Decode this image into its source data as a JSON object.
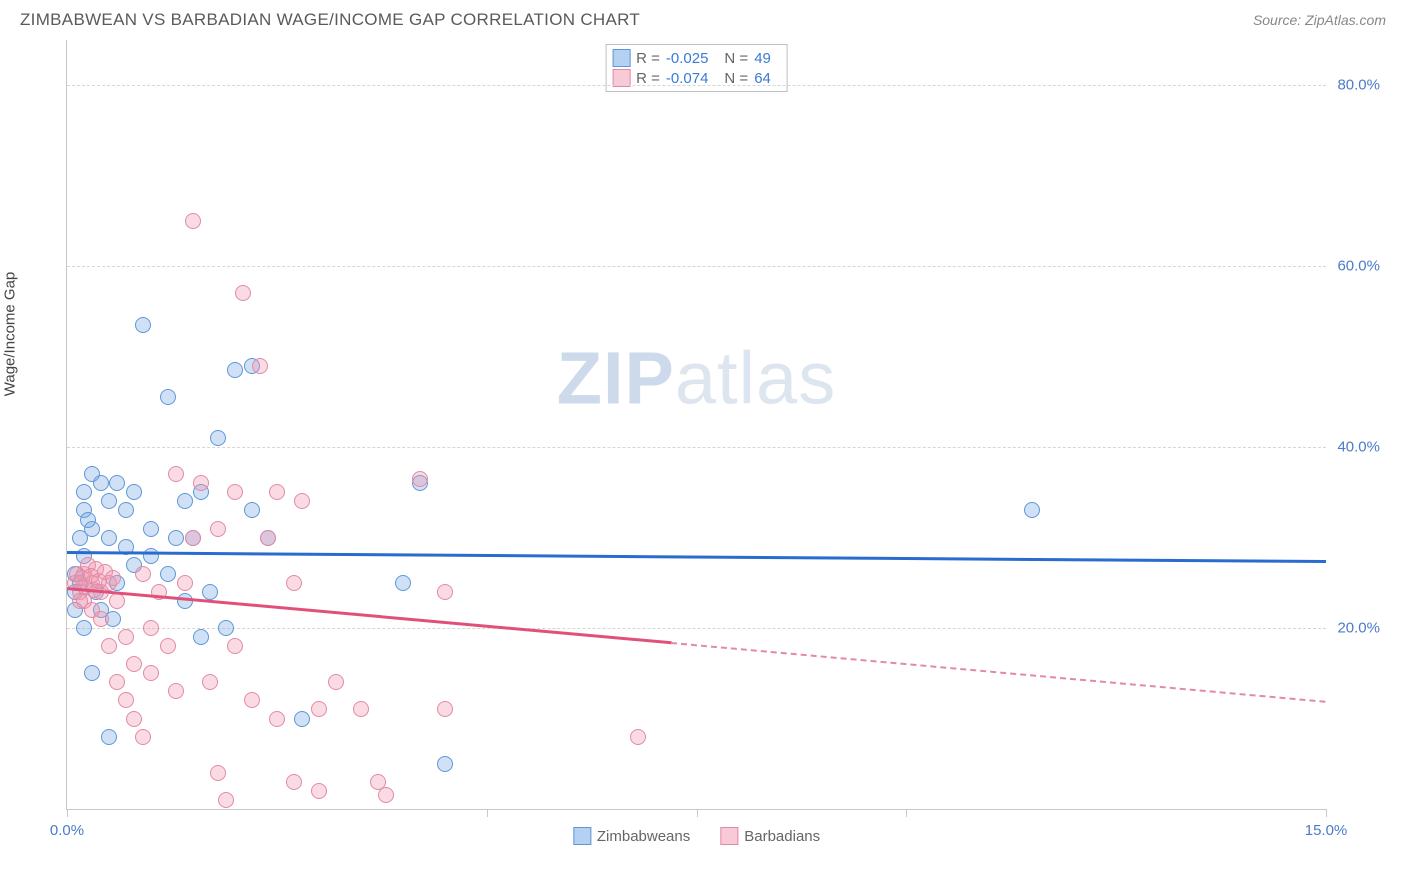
{
  "title": "ZIMBABWEAN VS BARBADIAN WAGE/INCOME GAP CORRELATION CHART",
  "source": "Source: ZipAtlas.com",
  "y_axis_label": "Wage/Income Gap",
  "watermark_zip": "ZIP",
  "watermark_atlas": "atlas",
  "chart": {
    "type": "scatter",
    "xlim": [
      0,
      15
    ],
    "ylim": [
      0,
      85
    ],
    "x_ticks": [
      0,
      5,
      7.5,
      10,
      15
    ],
    "x_tick_labels": {
      "0": "0.0%",
      "15": "15.0%"
    },
    "y_gridlines": [
      20,
      40,
      60,
      80
    ],
    "y_tick_labels": {
      "20": "20.0%",
      "40": "40.0%",
      "60": "60.0%",
      "80": "80.0%"
    },
    "background_color": "#ffffff",
    "grid_color": "#d6d6d6",
    "axis_color": "#c8c8c8",
    "tick_label_color": "#4a7bc8",
    "series": [
      {
        "name": "Zimbabweans",
        "stat_R": "-0.025",
        "stat_N": "49",
        "marker_fill": "rgba(120,170,230,0.35)",
        "marker_stroke": "#5e97d8",
        "swatch_fill": "rgba(150,190,235,0.7)",
        "swatch_stroke": "#5e97d8",
        "trend_color": "#2a6bd0",
        "trend_start": [
          0,
          28.5
        ],
        "trend_solid_end": [
          15,
          27.5
        ],
        "trend_dash_end": null,
        "points": [
          [
            0.1,
            22
          ],
          [
            0.1,
            24
          ],
          [
            0.1,
            26
          ],
          [
            0.2,
            33
          ],
          [
            0.2,
            35
          ],
          [
            0.3,
            37
          ],
          [
            0.3,
            31
          ],
          [
            0.2,
            28
          ],
          [
            0.4,
            36
          ],
          [
            0.5,
            34
          ],
          [
            0.5,
            30
          ],
          [
            0.6,
            36
          ],
          [
            0.7,
            29
          ],
          [
            0.7,
            33
          ],
          [
            0.8,
            35
          ],
          [
            0.9,
            53.5
          ],
          [
            1.0,
            31
          ],
          [
            1.2,
            45.5
          ],
          [
            1.3,
            30
          ],
          [
            1.4,
            34
          ],
          [
            1.5,
            30
          ],
          [
            1.6,
            35
          ],
          [
            1.7,
            24
          ],
          [
            1.8,
            41
          ],
          [
            1.9,
            20
          ],
          [
            2.0,
            48.5
          ],
          [
            2.2,
            49
          ],
          [
            2.2,
            33
          ],
          [
            2.4,
            30
          ],
          [
            0.5,
            8
          ],
          [
            0.3,
            15
          ],
          [
            2.8,
            10
          ],
          [
            4.0,
            25
          ],
          [
            4.5,
            5
          ],
          [
            4.2,
            36
          ],
          [
            11.5,
            33
          ],
          [
            0.2,
            20
          ],
          [
            0.4,
            22
          ],
          [
            0.6,
            25
          ],
          [
            0.8,
            27
          ],
          [
            1.0,
            28
          ],
          [
            1.2,
            26
          ],
          [
            1.4,
            23
          ],
          [
            1.6,
            19
          ],
          [
            0.15,
            30
          ],
          [
            0.25,
            32
          ],
          [
            0.35,
            24
          ],
          [
            0.55,
            21
          ],
          [
            0.15,
            25
          ]
        ]
      },
      {
        "name": "Barbadians",
        "stat_R": "-0.074",
        "stat_N": "64",
        "marker_fill": "rgba(240,150,175,0.35)",
        "marker_stroke": "#e28aa5",
        "swatch_fill": "rgba(245,180,200,0.7)",
        "swatch_stroke": "#e28aa5",
        "trend_color": "#e0517a",
        "trend_start": [
          0,
          24.5
        ],
        "trend_solid_end": [
          7.2,
          18.5
        ],
        "trend_dash_end": [
          15,
          12
        ],
        "points": [
          [
            0.1,
            25
          ],
          [
            0.15,
            24
          ],
          [
            0.2,
            26
          ],
          [
            0.2,
            23
          ],
          [
            0.25,
            27
          ],
          [
            0.3,
            25
          ],
          [
            0.3,
            22
          ],
          [
            0.35,
            26.5
          ],
          [
            0.4,
            24
          ],
          [
            0.4,
            21
          ],
          [
            0.5,
            25
          ],
          [
            0.5,
            18
          ],
          [
            0.6,
            23
          ],
          [
            0.6,
            14
          ],
          [
            0.7,
            19
          ],
          [
            0.7,
            12
          ],
          [
            0.8,
            16
          ],
          [
            0.8,
            10
          ],
          [
            0.9,
            26
          ],
          [
            0.9,
            8
          ],
          [
            1.0,
            20
          ],
          [
            1.0,
            15
          ],
          [
            1.1,
            24
          ],
          [
            1.2,
            18
          ],
          [
            1.3,
            13
          ],
          [
            1.3,
            37
          ],
          [
            1.4,
            25
          ],
          [
            1.5,
            65
          ],
          [
            1.5,
            30
          ],
          [
            1.6,
            36
          ],
          [
            1.7,
            14
          ],
          [
            1.8,
            31
          ],
          [
            1.8,
            4
          ],
          [
            1.9,
            1
          ],
          [
            2.0,
            35
          ],
          [
            2.0,
            18
          ],
          [
            2.1,
            57
          ],
          [
            2.2,
            12
          ],
          [
            2.3,
            49
          ],
          [
            2.4,
            30
          ],
          [
            2.5,
            35
          ],
          [
            2.5,
            10
          ],
          [
            2.7,
            25
          ],
          [
            2.7,
            3
          ],
          [
            2.8,
            34
          ],
          [
            3.0,
            11
          ],
          [
            3.0,
            2
          ],
          [
            3.2,
            14
          ],
          [
            3.5,
            11
          ],
          [
            3.7,
            3
          ],
          [
            3.8,
            1.5
          ],
          [
            4.2,
            36.5
          ],
          [
            4.5,
            24
          ],
          [
            4.5,
            11
          ],
          [
            6.8,
            8
          ],
          [
            0.12,
            26
          ],
          [
            0.18,
            25.5
          ],
          [
            0.22,
            24.5
          ],
          [
            0.28,
            25.8
          ],
          [
            0.32,
            24.2
          ],
          [
            0.38,
            25.2
          ],
          [
            0.45,
            26.2
          ],
          [
            0.15,
            23
          ],
          [
            0.55,
            25.5
          ]
        ]
      }
    ],
    "legend_stats": {
      "R_label": "R =",
      "N_label": "N ="
    },
    "bottom_legend_labels": [
      "Zimbabweans",
      "Barbadians"
    ]
  }
}
